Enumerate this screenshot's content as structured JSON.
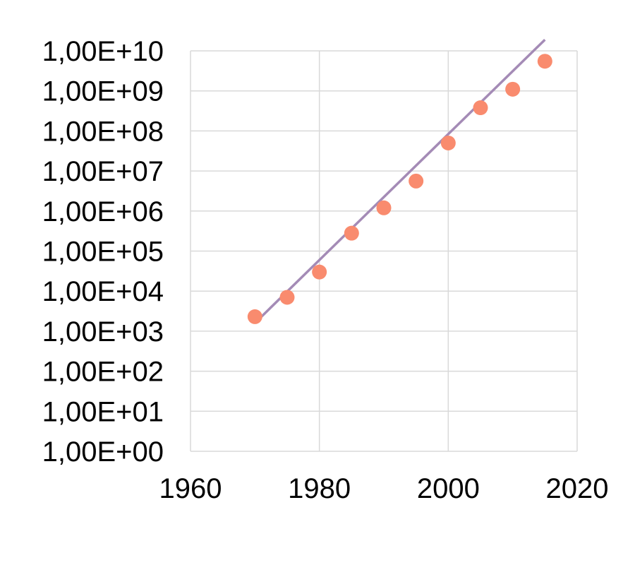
{
  "chart_data": {
    "type": "scatter",
    "title": "",
    "xlabel": "",
    "ylabel": "",
    "y_scale": "log",
    "xlim": [
      1960,
      2020
    ],
    "ylim": [
      1,
      10000000000
    ],
    "x_ticks": [
      1960,
      1980,
      2000,
      2020
    ],
    "x_tick_labels": [
      "1960",
      "1980",
      "2000",
      "2020"
    ],
    "y_ticks": [
      1,
      10,
      100,
      1000,
      10000,
      100000,
      1000000,
      10000000,
      100000000,
      1000000000,
      10000000000
    ],
    "y_tick_labels": [
      "1,00E+00",
      "1,00E+01",
      "1,00E+02",
      "1,00E+03",
      "1,00E+04",
      "1,00E+05",
      "1,00E+06",
      "1,00E+07",
      "1,00E+08",
      "1,00E+09",
      "1,00E+10"
    ],
    "grid": true,
    "legend": "none",
    "series": [
      {
        "kind": "points",
        "color": "#f98b6e",
        "x": [
          1970,
          1975,
          1980,
          1985,
          1990,
          1995,
          2000,
          2005,
          2010,
          2015
        ],
        "y": [
          2300,
          7000,
          30000,
          280000,
          1200000,
          5600000,
          50000000,
          380000000,
          1100000000,
          5500000000
        ]
      },
      {
        "kind": "trendline",
        "color": "#a48bb6",
        "x": [
          1970,
          2015
        ],
        "y": [
          1600,
          19000000000
        ]
      }
    ]
  }
}
